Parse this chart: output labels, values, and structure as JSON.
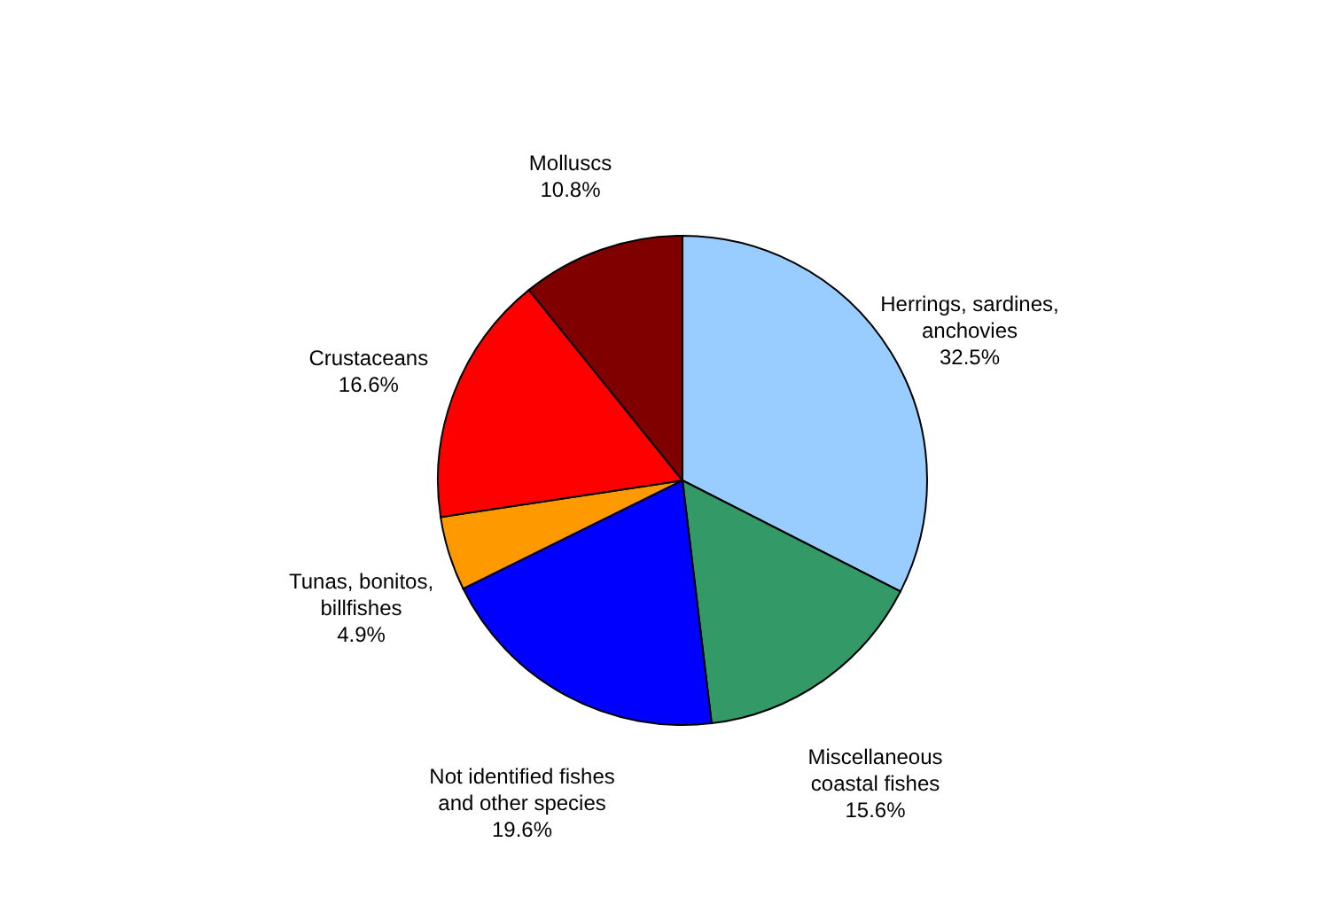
{
  "chart_data": {
    "type": "pie",
    "categories": [
      "Herrings, sardines,\nanchovies",
      "Miscellaneous\ncoastal fishes",
      "Not identified fishes\nand other species",
      "Tunas, bonitos,\nbillfishes",
      "Crustaceans",
      "Molluscs"
    ],
    "values": [
      32.5,
      15.6,
      19.6,
      4.9,
      16.6,
      10.8
    ],
    "colors": [
      "#99ccff",
      "#339966",
      "#0000ff",
      "#ff9900",
      "#ff0000",
      "#800000"
    ],
    "value_labels": [
      "32.5%",
      "15.6%",
      "19.6%",
      "4.9%",
      "16.6%",
      "10.8%"
    ]
  }
}
